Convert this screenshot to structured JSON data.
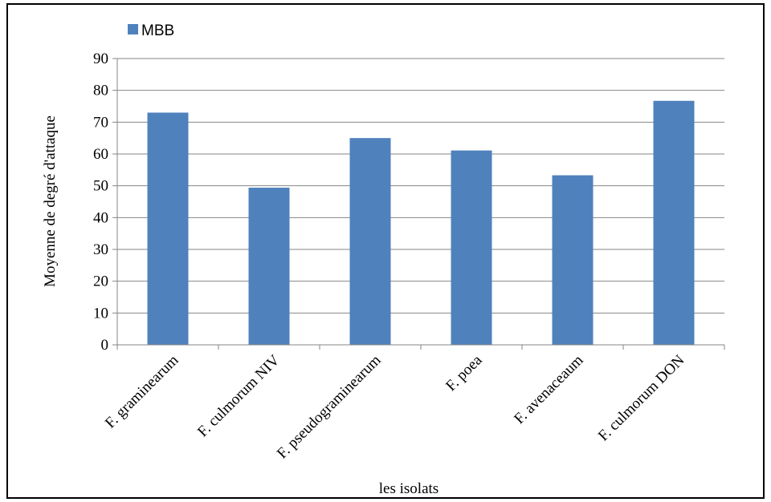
{
  "chart_data": {
    "type": "bar",
    "categories": [
      "F. graminearum",
      "F. culmorum NIV",
      "F. pseudograminearum",
      "F. poea",
      "F. avenaceaum",
      "F. culmorum DON"
    ],
    "series": [
      {
        "name": "MBB",
        "values": [
          73,
          49.4,
          65,
          61.1,
          53.3,
          76.7
        ],
        "color": "#4F81BD"
      }
    ],
    "xlabel": "les isolats",
    "ylabel": "Moyenne de degré d'attaque",
    "ylim": [
      0,
      90
    ],
    "yticks": [
      0,
      10,
      20,
      30,
      40,
      50,
      60,
      70,
      80,
      90
    ],
    "grid": true,
    "legend": "top-left"
  }
}
